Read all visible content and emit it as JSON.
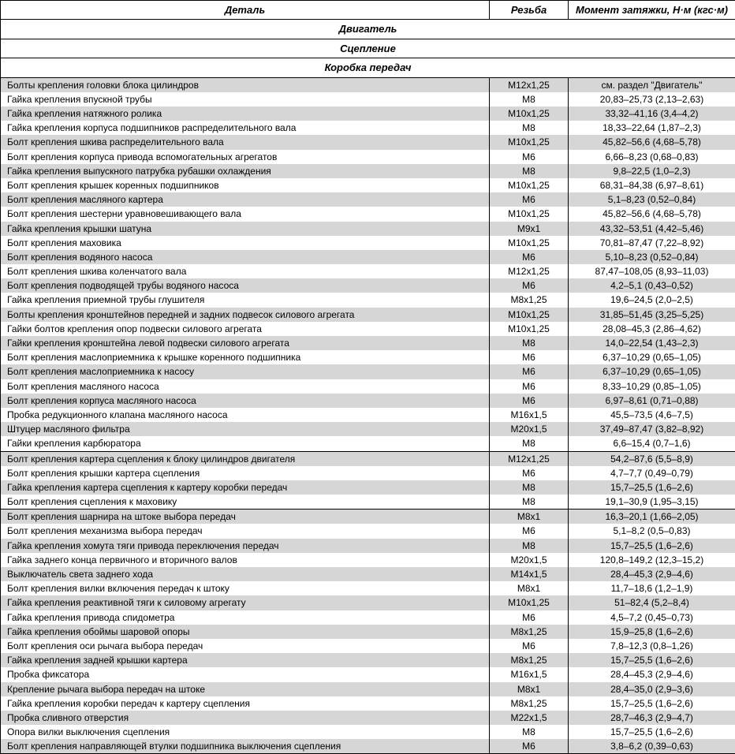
{
  "columns": {
    "detail": "Деталь",
    "thread": "Резьба",
    "torque": "Момент затяжки, Н·м (кгс·м)"
  },
  "sections": [
    {
      "title": "Двигатель",
      "rows": [
        {
          "detail": "Болты крепления головки блока цилиндров",
          "thread": "М12х1,25",
          "torque": "см. раздел \"Двигатель\""
        },
        {
          "detail": "Гайка крепления впускной трубы",
          "thread": "М8",
          "torque": "20,83–25,73 (2,13–2,63)"
        },
        {
          "detail": "Гайка крепления натяжного ролика",
          "thread": "М10х1,25",
          "torque": "33,32–41,16 (3,4–4,2)"
        },
        {
          "detail": "Гайка крепления корпуса подшипников распределительного вала",
          "thread": "М8",
          "torque": "18,33–22,64 (1,87–2,3)"
        },
        {
          "detail": "Болт крепления шкива распределительного вала",
          "thread": "М10х1,25",
          "torque": "45,82–56,6 (4,68–5,78)"
        },
        {
          "detail": "Болт крепления корпуса привода вспомогательных агрегатов",
          "thread": "М6",
          "torque": "6,66–8,23 (0,68–0,83)"
        },
        {
          "detail": "Гайка крепления выпускного патрубка рубашки охлаждения",
          "thread": "М8",
          "torque": "9,8–22,5 (1,0–2,3)"
        },
        {
          "detail": "Болт крепления крышек коренных подшипников",
          "thread": "М10х1,25",
          "torque": "68,31–84,38 (6,97–8,61)"
        },
        {
          "detail": "Болт крепления масляного картера",
          "thread": "М6",
          "torque": "5,1–8,23 (0,52–0,84)"
        },
        {
          "detail": "Болт крепления шестерни уравновешивающего вала",
          "thread": "М10х1,25",
          "torque": "45,82–56,6 (4,68–5,78)"
        },
        {
          "detail": "Гайка крепления крышки шатуна",
          "thread": "М9х1",
          "torque": "43,32–53,51 (4,42–5,46)"
        },
        {
          "detail": "Болт крепления маховика",
          "thread": "М10х1,25",
          "torque": "70,81–87,47 (7,22–8,92)"
        },
        {
          "detail": "Болт крепления водяного насоса",
          "thread": "М6",
          "torque": "5,10–8,23 (0,52–0,84)"
        },
        {
          "detail": "Болт крепления шкива коленчатого вала",
          "thread": "М12х1,25",
          "torque": "87,47–108,05 (8,93–11,03)"
        },
        {
          "detail": "Болт крепления подводящей трубы водяного насоса",
          "thread": "М6",
          "torque": "4,2–5,1 (0,43–0,52)"
        },
        {
          "detail": "Гайка крепления приемной трубы глушителя",
          "thread": "М8х1,25",
          "torque": "19,6–24,5 (2,0–2,5)"
        },
        {
          "detail": "Болты крепления кронштейнов передней и задних подвесок силового агрегата",
          "thread": "М10х1,25",
          "torque": "31,85–51,45 (3,25–5,25)"
        },
        {
          "detail": "Гайки болтов крепления опор подвески силового агрегата",
          "thread": "М10х1,25",
          "torque": "28,08–45,3 (2,86–4,62)"
        },
        {
          "detail": "Гайки крепления кронштейна левой подвески силового агрегата",
          "thread": "М8",
          "torque": "14,0–22,54 (1,43–2,3)"
        },
        {
          "detail": "Болт крепления маслоприемника к крышке коренного подшипника",
          "thread": "М6",
          "torque": "6,37–10,29 (0,65–1,05)"
        },
        {
          "detail": "Болт крепления маслоприемника к насосу",
          "thread": "М6",
          "torque": "6,37–10,29 (0,65–1,05)"
        },
        {
          "detail": "Болт крепления масляного насоса",
          "thread": "М6",
          "torque": "8,33–10,29 (0,85–1,05)"
        },
        {
          "detail": "Болт крепления корпуса масляного насоса",
          "thread": "М6",
          "torque": "6,97–8,61 (0,71–0,88)"
        },
        {
          "detail": "Пробка редукционного клапана масляного насоса",
          "thread": "М16х1,5",
          "torque": "45,5–73,5 (4,6–7,5)"
        },
        {
          "detail": "Штуцер масляного фильтра",
          "thread": "М20х1,5",
          "torque": "37,49–87,47 (3,82–8,92)"
        },
        {
          "detail": "Гайки крепления карбюратора",
          "thread": "М8",
          "torque": "6,6–15,4 (0,7–1,6)"
        }
      ]
    },
    {
      "title": "Сцепление",
      "rows": [
        {
          "detail": "Болт крепления картера сцепления к блоку цилиндров двигателя",
          "thread": "М12х1,25",
          "torque": "54,2–87,6 (5,5–8,9)"
        },
        {
          "detail": "Болт крепления крышки картера сцепления",
          "thread": "М6",
          "torque": "4,7–7,7 (0,49–0,79)"
        },
        {
          "detail": "Гайка крепления картера сцепления к картеру коробки передач",
          "thread": "М8",
          "torque": "15,7–25,5 (1,6–2,6)"
        },
        {
          "detail": "Болт крепления сцепления к маховику",
          "thread": "М8",
          "torque": "19,1–30,9 (1,95–3,15)"
        }
      ]
    },
    {
      "title": "Коробка передач",
      "rows": [
        {
          "detail": "Болт крепления шарнира на штоке выбора передач",
          "thread": "М8х1",
          "torque": "16,3–20,1 (1,66–2,05)"
        },
        {
          "detail": "Болт крепления механизма выбора передач",
          "thread": "М6",
          "torque": "5,1–8,2 (0,5–0,83)"
        },
        {
          "detail": "Гайка крепления хомута тяги привода переключения передач",
          "thread": "М8",
          "torque": "15,7–25,5 (1,6–2,6)"
        },
        {
          "detail": "Гайка заднего конца первичного и вторичного валов",
          "thread": "М20х1,5",
          "torque": "120,8–149,2 (12,3–15,2)"
        },
        {
          "detail": "Выключатель света заднего хода",
          "thread": "М14х1,5",
          "torque": "28,4–45,3 (2,9–4,6)"
        },
        {
          "detail": "Болт крепления вилки включения передач к штоку",
          "thread": "М8х1",
          "torque": "11,7–18,6 (1,2–1,9)"
        },
        {
          "detail": "Гайка крепления реактивной тяги к силовому агрегату",
          "thread": "М10х1,25",
          "torque": "51–82,4 (5,2–8,4)"
        },
        {
          "detail": "Гайка крепления привода спидометра",
          "thread": "М6",
          "torque": "4,5–7,2 (0,45–0,73)"
        },
        {
          "detail": "Гайка крепления обоймы шаровой опоры",
          "thread": "М8х1,25",
          "torque": "15,9–25,8 (1,6–2,6)"
        },
        {
          "detail": "Болт крепления оси рычага выбора передач",
          "thread": "М6",
          "torque": "7,8–12,3 (0,8–1,26)"
        },
        {
          "detail": "Гайка крепления задней крышки картера",
          "thread": "М8х1,25",
          "torque": "15,7–25,5 (1,6–2,6)"
        },
        {
          "detail": "Пробка фиксатора",
          "thread": "М16х1,5",
          "torque": "28,4–45,3 (2,9–4,6)"
        },
        {
          "detail": "Крепление рычага выбора передач на штоке",
          "thread": "М8х1",
          "torque": "28,4–35,0 (2,9–3,6)"
        },
        {
          "detail": "Гайка крепления коробки передач к картеру сцепления",
          "thread": "М8х1,25",
          "torque": "15,7–25,5 (1,6–2,6)"
        },
        {
          "detail": "Пробка сливного отверстия",
          "thread": "М22х1,5",
          "torque": "28,7–46,3 (2,9–4,7)"
        },
        {
          "detail": "Опора вилки выключения сцепления",
          "thread": "М8",
          "torque": "15,7–25,5 (1,6–2,6)"
        },
        {
          "detail": "Болт крепления направляющей втулки подшипника выключения сцепления",
          "thread": "М6",
          "torque": "3,8–6,2 (0,39–0,63)"
        }
      ]
    }
  ]
}
